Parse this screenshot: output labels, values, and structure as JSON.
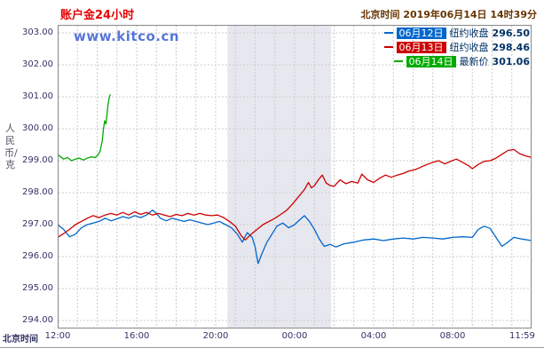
{
  "page": {
    "title": "账户金24小时",
    "header_time": "北京时间 2019年06月14日 14时39分",
    "watermark": "www.kitco.cn",
    "bottom_axis_label": "北京时间",
    "y_axis_unit": "人民币/克"
  },
  "colors": {
    "title": "#e60000",
    "header_time": "#663300",
    "axis_text": "#333366",
    "watermark": "#3a5fd0",
    "grid": "#cccccc",
    "plot_border": "#888888"
  },
  "legend": {
    "items": [
      {
        "date": "06月12日",
        "label": "纽约收盘",
        "value": "296.50",
        "color": "#0066cc"
      },
      {
        "date": "06月13日",
        "label": "纽约收盘",
        "value": "298.46",
        "color": "#cc0000"
      },
      {
        "date": "06月14日",
        "label": "最新价",
        "value": "301.06",
        "color": "#00aa00"
      }
    ]
  },
  "chart_data": {
    "type": "line",
    "title": "账户金24小时",
    "xlabel": "北京时间",
    "ylabel": "人民币/克",
    "ylim": [
      294,
      303
    ],
    "x_unit": "hours_since_12:00_beijing",
    "x_range_hours": 24,
    "grid": {
      "x_interval_hours": 1,
      "y_interval": 1
    },
    "legend_position": "top-right",
    "y_ticks": [
      "303.00",
      "302.00",
      "301.00",
      "300.00",
      "299.00",
      "298.00",
      "297.00",
      "296.00",
      "295.00",
      "294.00"
    ],
    "x_ticks": [
      {
        "hour": 0,
        "label": "12:00"
      },
      {
        "hour": 4,
        "label": "16:00"
      },
      {
        "hour": 8,
        "label": "20:00"
      },
      {
        "hour": 12,
        "label": "00:00"
      },
      {
        "hour": 16,
        "label": "04:00"
      },
      {
        "hour": 20,
        "label": "08:00"
      },
      {
        "hour": 23.98,
        "label": "11:59"
      }
    ],
    "shaded_region": {
      "from_hour": 8.6,
      "to_hour": 13.85,
      "color": "#e7e7ef"
    },
    "series": [
      {
        "name": "06月12日 纽约收盘",
        "close": 296.5,
        "color": "#0066cc",
        "points": [
          [
            0,
            297.0
          ],
          [
            0.3,
            296.85
          ],
          [
            0.6,
            296.62
          ],
          [
            0.9,
            296.7
          ],
          [
            1.2,
            296.9
          ],
          [
            1.5,
            297.0
          ],
          [
            1.8,
            297.05
          ],
          [
            2.1,
            297.1
          ],
          [
            2.4,
            297.2
          ],
          [
            2.7,
            297.12
          ],
          [
            3.0,
            297.18
          ],
          [
            3.3,
            297.25
          ],
          [
            3.6,
            297.2
          ],
          [
            3.9,
            297.28
          ],
          [
            4.2,
            297.22
          ],
          [
            4.5,
            297.3
          ],
          [
            4.8,
            297.45
          ],
          [
            5.0,
            297.35
          ],
          [
            5.2,
            297.2
          ],
          [
            5.5,
            297.12
          ],
          [
            5.8,
            297.2
          ],
          [
            6.1,
            297.15
          ],
          [
            6.4,
            297.1
          ],
          [
            6.7,
            297.15
          ],
          [
            7.0,
            297.1
          ],
          [
            7.3,
            297.05
          ],
          [
            7.6,
            297.0
          ],
          [
            7.9,
            297.05
          ],
          [
            8.2,
            297.1
          ],
          [
            8.5,
            297.0
          ],
          [
            8.8,
            296.9
          ],
          [
            9.1,
            296.7
          ],
          [
            9.35,
            296.45
          ],
          [
            9.6,
            296.75
          ],
          [
            9.85,
            296.6
          ],
          [
            10.0,
            296.3
          ],
          [
            10.15,
            295.78
          ],
          [
            10.35,
            296.1
          ],
          [
            10.6,
            296.45
          ],
          [
            10.85,
            296.7
          ],
          [
            11.1,
            296.95
          ],
          [
            11.4,
            297.05
          ],
          [
            11.7,
            296.9
          ],
          [
            12.0,
            297.0
          ],
          [
            12.25,
            297.15
          ],
          [
            12.5,
            297.28
          ],
          [
            12.75,
            297.1
          ],
          [
            13.0,
            296.85
          ],
          [
            13.25,
            296.55
          ],
          [
            13.5,
            296.32
          ],
          [
            13.8,
            296.38
          ],
          [
            14.1,
            296.3
          ],
          [
            14.5,
            296.4
          ],
          [
            15.0,
            296.45
          ],
          [
            15.5,
            296.52
          ],
          [
            16.0,
            296.55
          ],
          [
            16.5,
            296.5
          ],
          [
            17.0,
            296.55
          ],
          [
            17.5,
            296.58
          ],
          [
            18.0,
            296.55
          ],
          [
            18.5,
            296.6
          ],
          [
            19.0,
            296.58
          ],
          [
            19.5,
            296.55
          ],
          [
            20.0,
            296.6
          ],
          [
            20.5,
            296.62
          ],
          [
            21.0,
            296.6
          ],
          [
            21.3,
            296.85
          ],
          [
            21.6,
            296.95
          ],
          [
            21.9,
            296.88
          ],
          [
            22.2,
            296.6
          ],
          [
            22.5,
            296.32
          ],
          [
            22.8,
            296.45
          ],
          [
            23.1,
            296.6
          ],
          [
            23.5,
            296.55
          ],
          [
            24,
            296.5
          ]
        ]
      },
      {
        "name": "06月13日 纽约收盘",
        "close": 298.46,
        "color": "#cc0000",
        "points": [
          [
            0,
            296.6
          ],
          [
            0.3,
            296.72
          ],
          [
            0.6,
            296.85
          ],
          [
            0.9,
            297.0
          ],
          [
            1.2,
            297.1
          ],
          [
            1.5,
            297.2
          ],
          [
            1.8,
            297.28
          ],
          [
            2.1,
            297.22
          ],
          [
            2.4,
            297.3
          ],
          [
            2.7,
            297.35
          ],
          [
            3.0,
            297.3
          ],
          [
            3.3,
            297.38
          ],
          [
            3.6,
            297.3
          ],
          [
            3.9,
            297.4
          ],
          [
            4.2,
            297.32
          ],
          [
            4.5,
            297.38
          ],
          [
            4.8,
            297.3
          ],
          [
            5.1,
            297.35
          ],
          [
            5.4,
            297.3
          ],
          [
            5.7,
            297.25
          ],
          [
            6.0,
            297.32
          ],
          [
            6.3,
            297.28
          ],
          [
            6.6,
            297.35
          ],
          [
            6.9,
            297.3
          ],
          [
            7.2,
            297.35
          ],
          [
            7.5,
            297.3
          ],
          [
            7.8,
            297.28
          ],
          [
            8.1,
            297.3
          ],
          [
            8.4,
            297.22
          ],
          [
            8.7,
            297.1
          ],
          [
            9.0,
            296.95
          ],
          [
            9.3,
            296.65
          ],
          [
            9.5,
            296.52
          ],
          [
            9.8,
            296.7
          ],
          [
            10.1,
            296.85
          ],
          [
            10.4,
            297.0
          ],
          [
            10.7,
            297.1
          ],
          [
            11.0,
            297.2
          ],
          [
            11.3,
            297.32
          ],
          [
            11.6,
            297.45
          ],
          [
            11.9,
            297.65
          ],
          [
            12.1,
            297.8
          ],
          [
            12.3,
            297.95
          ],
          [
            12.5,
            298.1
          ],
          [
            12.7,
            298.32
          ],
          [
            12.85,
            298.15
          ],
          [
            13.0,
            298.22
          ],
          [
            13.2,
            298.4
          ],
          [
            13.4,
            298.55
          ],
          [
            13.6,
            298.3
          ],
          [
            13.8,
            298.22
          ],
          [
            14.0,
            298.2
          ],
          [
            14.3,
            298.4
          ],
          [
            14.6,
            298.28
          ],
          [
            14.9,
            298.35
          ],
          [
            15.2,
            298.3
          ],
          [
            15.4,
            298.58
          ],
          [
            15.7,
            298.4
          ],
          [
            16.0,
            298.32
          ],
          [
            16.3,
            298.45
          ],
          [
            16.6,
            298.55
          ],
          [
            16.9,
            298.48
          ],
          [
            17.2,
            298.55
          ],
          [
            17.5,
            298.6
          ],
          [
            17.8,
            298.68
          ],
          [
            18.1,
            298.72
          ],
          [
            18.4,
            298.8
          ],
          [
            18.7,
            298.88
          ],
          [
            19.0,
            298.95
          ],
          [
            19.3,
            299.0
          ],
          [
            19.6,
            298.9
          ],
          [
            19.9,
            298.98
          ],
          [
            20.2,
            299.05
          ],
          [
            20.5,
            298.95
          ],
          [
            20.8,
            298.85
          ],
          [
            21.0,
            298.75
          ],
          [
            21.3,
            298.88
          ],
          [
            21.6,
            298.98
          ],
          [
            21.9,
            299.0
          ],
          [
            22.2,
            299.08
          ],
          [
            22.5,
            299.2
          ],
          [
            22.8,
            299.32
          ],
          [
            23.1,
            299.35
          ],
          [
            23.4,
            299.22
          ],
          [
            23.7,
            299.15
          ],
          [
            24,
            299.1
          ]
        ]
      },
      {
        "name": "06月14日 最新价",
        "close": 301.06,
        "color": "#00aa00",
        "points": [
          [
            0,
            299.2
          ],
          [
            0.15,
            299.12
          ],
          [
            0.3,
            299.05
          ],
          [
            0.5,
            299.1
          ],
          [
            0.7,
            299.0
          ],
          [
            0.9,
            299.05
          ],
          [
            1.1,
            299.08
          ],
          [
            1.3,
            299.02
          ],
          [
            1.5,
            299.08
          ],
          [
            1.7,
            299.12
          ],
          [
            1.9,
            299.1
          ],
          [
            2.05,
            299.18
          ],
          [
            2.15,
            299.3
          ],
          [
            2.25,
            299.6
          ],
          [
            2.32,
            300.0
          ],
          [
            2.38,
            300.25
          ],
          [
            2.44,
            300.15
          ],
          [
            2.5,
            300.45
          ],
          [
            2.55,
            300.75
          ],
          [
            2.6,
            300.95
          ],
          [
            2.65,
            301.06
          ]
        ]
      }
    ]
  }
}
